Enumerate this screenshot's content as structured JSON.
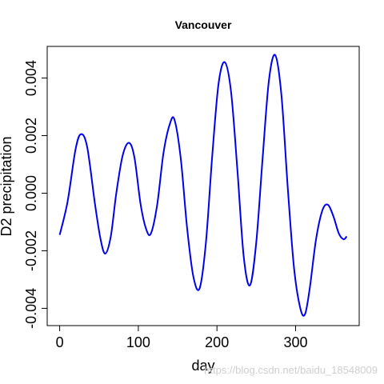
{
  "chart_data": {
    "type": "line",
    "title": "Vancouver",
    "xlabel": "day",
    "ylabel": "D2 precipitation",
    "xlim": [
      0,
      365
    ],
    "ylim": [
      -0.0046,
      0.0051
    ],
    "grid": false,
    "legend": "none",
    "x_ticks": [
      0,
      100,
      200,
      300
    ],
    "x_tick_labels": [
      "0",
      "100",
      "200",
      "300"
    ],
    "y_ticks": [
      -0.004,
      -0.002,
      0.0,
      0.002,
      0.004
    ],
    "y_tick_labels": [
      "-0.004",
      "-0.002",
      "0.000",
      "0.002",
      "0.004"
    ],
    "series": [
      {
        "color": "#0000ee",
        "x": [
          0,
          10,
          20,
          27,
          35,
          45,
          52,
          58,
          65,
          72,
          80,
          88,
          95,
          103,
          110,
          116,
          124,
          132,
          140,
          146,
          154,
          162,
          170,
          178,
          186,
          194,
          202,
          210,
          218,
          226,
          234,
          242,
          250,
          258,
          266,
          274,
          282,
          290,
          298,
          306,
          312,
          318,
          326,
          334,
          341,
          348,
          355,
          361,
          365
        ],
        "y": [
          -0.00145,
          -0.0003,
          0.0015,
          0.00205,
          0.0016,
          -0.0004,
          -0.0016,
          -0.0021,
          -0.0015,
          0.0,
          0.0013,
          0.00175,
          0.00125,
          -0.0004,
          -0.00125,
          -0.0014,
          -0.0004,
          0.0014,
          0.0024,
          0.00255,
          0.0012,
          -0.0012,
          -0.0029,
          -0.0033,
          -0.0017,
          0.0013,
          0.0038,
          0.00455,
          0.0035,
          0.0008,
          -0.0022,
          -0.0032,
          -0.0017,
          0.0012,
          0.0039,
          0.0048,
          0.0034,
          0.0002,
          -0.0026,
          -0.004,
          -0.0042,
          -0.0033,
          -0.0016,
          -0.0006,
          -0.0004,
          -0.0008,
          -0.0014,
          -0.0016,
          -0.0015
        ]
      }
    ]
  },
  "watermark": "https://blog.csdn.net/baidu_18548009"
}
